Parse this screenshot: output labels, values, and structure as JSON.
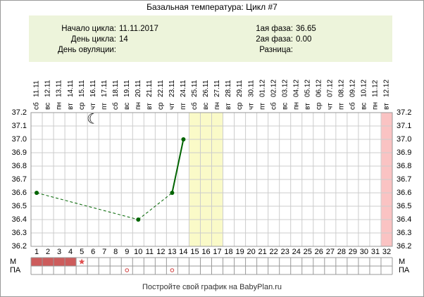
{
  "chart_data": {
    "type": "line",
    "title": "Базальная температура: Цикл #7",
    "info": [
      {
        "label": "Начало цикла:",
        "value": "11.11.2017"
      },
      {
        "label": "День цикла:",
        "value": 14
      },
      {
        "label": "День овуляции:"
      },
      {
        "label": "1ая фаза:",
        "value": "36.65"
      },
      {
        "label": "2ая фаза:",
        "value": "0.00"
      },
      {
        "label": "Разница:"
      }
    ],
    "days": [
      1,
      2,
      3,
      4,
      5,
      6,
      7,
      8,
      9,
      10,
      11,
      12,
      13,
      14,
      15,
      16,
      17,
      18,
      19,
      20,
      21,
      22,
      23,
      24,
      25,
      26,
      27,
      28,
      29,
      30,
      31,
      32
    ],
    "weekdays": [
      "сб",
      "вс",
      "пн",
      "вт",
      "ср",
      "чт",
      "пт",
      "сб",
      "вс",
      "пн",
      "вт",
      "ср",
      "чт",
      "пт",
      "сб",
      "вс",
      "пн",
      "вт",
      "ср",
      "чт",
      "пт",
      "сб",
      "вс",
      "пн",
      "вт",
      "ср",
      "чт",
      "пт",
      "сб",
      "вс",
      "пн",
      "вт"
    ],
    "dates": [
      "11.11",
      "12.11",
      "13.11",
      "14.11",
      "15.11",
      "16.11",
      "17.11",
      "18.11",
      "19.11",
      "20.11",
      "21.11",
      "22.11",
      "23.11",
      "24.11",
      "25.11",
      "26.11",
      "27.11",
      "28.11",
      "29.11",
      "30.11",
      "01.12",
      "02.12",
      "03.12",
      "04.12",
      "05.12",
      "06.12",
      "07.12",
      "08.12",
      "09.12",
      "10.12",
      "11.12",
      "12.12"
    ],
    "values": [
      36.6,
      null,
      null,
      null,
      null,
      null,
      null,
      null,
      null,
      36.4,
      null,
      null,
      36.6,
      37.0,
      null,
      null,
      null,
      null,
      null,
      null,
      null,
      null,
      null,
      null,
      null,
      null,
      null,
      null,
      null,
      null,
      null,
      null
    ],
    "color": "#006400",
    "ylim": [
      36.2,
      37.2
    ],
    "yticks": [
      36.2,
      36.3,
      36.4,
      36.5,
      36.6,
      36.7,
      36.8,
      36.9,
      {
        "value": 37,
        "label": "37.0"
      },
      37.1,
      37.2
    ],
    "grid": true,
    "shaded": [
      {
        "from": 15,
        "to": 17,
        "color": "#fafac8"
      },
      {
        "from": 32,
        "to": 32,
        "color": "#fac3c3"
      }
    ],
    "row_labels": [
      "М",
      "ПА"
    ],
    "menstruation_days": [
      1,
      2,
      3,
      4
    ],
    "spotting_days": [
      5
    ],
    "intercourse_days": [
      9,
      13
    ],
    "footer": "Постройте свой график на BabyPlan.ru"
  }
}
